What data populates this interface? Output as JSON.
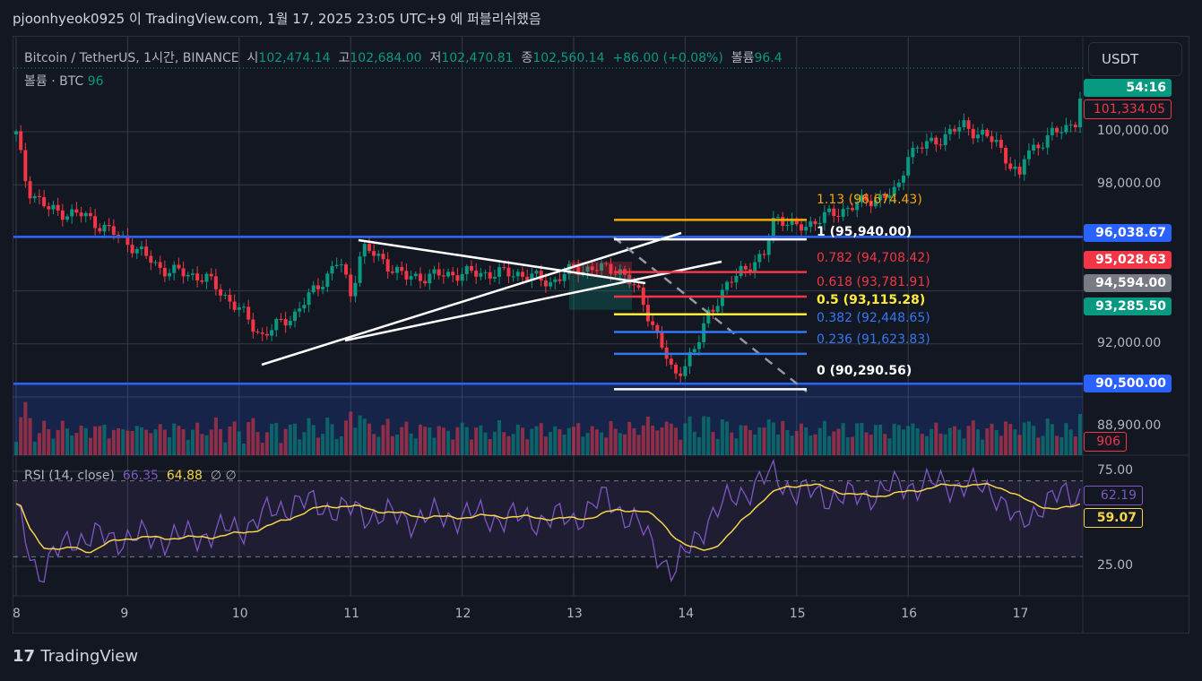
{
  "publisher_line": "pjoonhyeok0925 이 TradingView.com, 1월 17, 2025 23:05 UTC+9 에 퍼블리쉬했음",
  "legend": {
    "symbol": "Bitcoin / TetherUS, 1시간, BINANCE",
    "open_label": "시",
    "open": "102,474.14",
    "high_label": "고",
    "high": "102,684.00",
    "low_label": "저",
    "low": "102,470.81",
    "close_label": "종",
    "close": "102,560.14",
    "change": "+86.00 (+0.08%)",
    "volume_label": "볼륨",
    "volume": "96.4",
    "vol_line_label": "볼륨 · BTC",
    "vol_line_value": "96"
  },
  "rsi_legend": {
    "title": "RSI (14, close)",
    "rsi": "66.35",
    "ma": "64.88",
    "extra1": "∅",
    "extra2": "∅"
  },
  "currency_button": "USDT",
  "price_tags": {
    "countdown": "54:16",
    "red_line": "101,334.05",
    "blue_high": "96,038.67",
    "red": "95,028.63",
    "gray": "94,594.00",
    "green": "93,285.50",
    "blue_low": "90,500.00",
    "volume": "906",
    "rsi": "62.19",
    "rsi_ma": "59.07"
  },
  "brand": "TradingView",
  "colors": {
    "up": "#089981",
    "down": "#f23645",
    "blue": "#2962ff",
    "rsi": "#7e57c2",
    "rsi_ma": "#f7d54a",
    "orange": "#f7a600",
    "yellow": "#ffeb3b"
  },
  "chart_data": {
    "type": "candlestick",
    "title": "Bitcoin / TetherUS, 1h, BINANCE",
    "x_ticks": [
      "8",
      "9",
      "10",
      "11",
      "12",
      "13",
      "14",
      "15",
      "16",
      "17"
    ],
    "y_ticks": [
      "100,000.00",
      "98,000.00",
      "92,000.00",
      "88,900.00"
    ],
    "y_tick_values": [
      100000,
      98000,
      92000,
      88900
    ],
    "price_path": [
      [
        8.0,
        99900
      ],
      [
        8.1,
        97870
      ],
      [
        8.3,
        97030
      ],
      [
        8.6,
        96860
      ],
      [
        9.0,
        95840
      ],
      [
        9.3,
        94830
      ],
      [
        9.7,
        94490
      ],
      [
        10.0,
        93310
      ],
      [
        10.2,
        92300
      ],
      [
        10.5,
        93140
      ],
      [
        10.9,
        95170
      ],
      [
        11.0,
        93820
      ],
      [
        11.1,
        95680
      ],
      [
        11.5,
        94490
      ],
      [
        12.0,
        94660
      ],
      [
        12.5,
        94660
      ],
      [
        12.8,
        94320
      ],
      [
        13.0,
        94830
      ],
      [
        13.4,
        94830
      ],
      [
        13.6,
        93820
      ],
      [
        13.8,
        91790
      ],
      [
        13.9,
        90780
      ],
      [
        14.1,
        91790
      ],
      [
        14.2,
        93140
      ],
      [
        14.5,
        94830
      ],
      [
        14.7,
        95170
      ],
      [
        14.8,
        96860
      ],
      [
        15.0,
        96350
      ],
      [
        15.3,
        96860
      ],
      [
        15.6,
        97360
      ],
      [
        15.9,
        97700
      ],
      [
        16.0,
        99220
      ],
      [
        16.2,
        99560
      ],
      [
        16.5,
        100240
      ],
      [
        16.8,
        99560
      ],
      [
        17.0,
        98210
      ],
      [
        17.05,
        99200
      ],
      [
        17.3,
        99900
      ],
      [
        17.5,
        100400
      ],
      [
        17.55,
        101250
      ]
    ],
    "horizontal_levels": [
      96038.67,
      90500
    ],
    "fib_levels": [
      {
        "label": "1.13 (96,674.43)",
        "price": 96674.43,
        "color": "#f7a600"
      },
      {
        "label": "1 (95,940.00)",
        "price": 95940,
        "color": "#ffffff"
      },
      {
        "label": "0.782 (94,708.42)",
        "price": 94708.42,
        "color": "#f23645"
      },
      {
        "label": "0.618 (93,781.91)",
        "price": 93781.91,
        "color": "#f23645"
      },
      {
        "label": "0.5 (93,115.28)",
        "price": 93115.28,
        "color": "#ffeb3b"
      },
      {
        "label": "0.382 (92,448.65)",
        "price": 92448.65,
        "color": "#3179f5"
      },
      {
        "label": "0.236 (91,623.83)",
        "price": 91623.83,
        "color": "#3179f5"
      },
      {
        "label": "0 (90,290.56)",
        "price": 90290.56,
        "color": "#ffffff"
      }
    ],
    "rsi_ticks": [
      "75.00",
      "25.00"
    ],
    "rsi_path": [
      [
        8.0,
        54
      ],
      [
        8.2,
        21
      ],
      [
        8.5,
        40
      ],
      [
        9.0,
        40
      ],
      [
        9.5,
        40
      ],
      [
        10.0,
        45
      ],
      [
        10.5,
        59
      ],
      [
        11.0,
        54
      ],
      [
        11.5,
        50
      ],
      [
        12.0,
        52
      ],
      [
        12.5,
        50
      ],
      [
        13.0,
        50
      ],
      [
        13.3,
        61
      ],
      [
        13.6,
        45
      ],
      [
        13.9,
        21
      ],
      [
        14.2,
        50
      ],
      [
        14.5,
        64
      ],
      [
        14.8,
        73
      ],
      [
        15.0,
        64
      ],
      [
        15.5,
        61
      ],
      [
        16.0,
        68
      ],
      [
        16.5,
        68
      ],
      [
        16.8,
        64
      ],
      [
        17.0,
        45
      ],
      [
        17.2,
        59
      ],
      [
        17.55,
        64
      ]
    ],
    "rsi_bands": [
      70,
      30
    ]
  }
}
